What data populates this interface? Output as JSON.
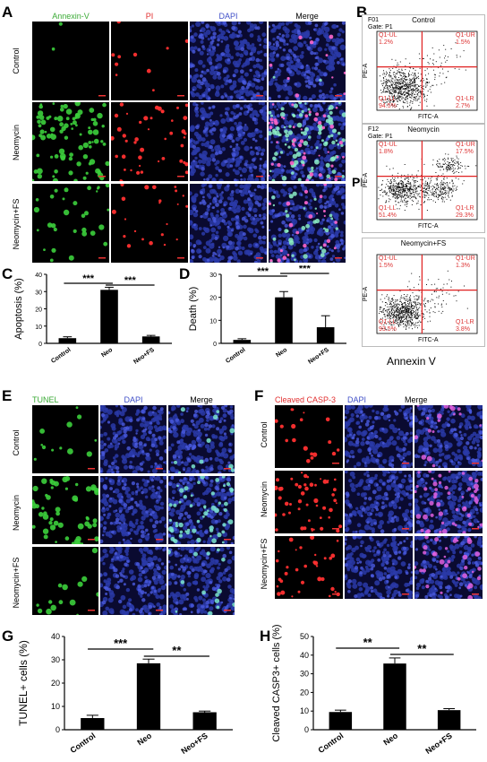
{
  "figure": {
    "panels": {
      "A": {
        "label": "A",
        "channels": [
          "Annexin-V",
          "PI",
          "DAPI",
          "Merge"
        ],
        "channel_colors": [
          "#3aaa35",
          "#e23030",
          "#4050c8",
          "#000000"
        ],
        "rows": [
          "Control",
          "Neomycin",
          "Neomycin+FS"
        ]
      },
      "B": {
        "label": "B",
        "y_title": "PI",
        "x_title": "Annexin V",
        "axis_x": "FITC-A",
        "axis_y": "PE-A",
        "plots": [
          {
            "id": "F01",
            "gate": "Gate: P1",
            "title": "Control",
            "UL": "Q1-UL\n1.2%",
            "UR": "Q1-UR\n1.5%",
            "LL": "Q1-LL\n94.5%",
            "LR": "Q1-LR\n2.7%"
          },
          {
            "id": "F12",
            "gate": "Gate: P1",
            "title": "Neomycin",
            "UL": "Q1-UL\n1.8%",
            "UR": "Q1-UR\n17.5%",
            "LL": "Q1-LL\n51.4%",
            "LR": "Q1-LR\n29.3%"
          },
          {
            "id": "",
            "gate": "",
            "title": "Neomycin+FS",
            "UL": "Q1-UL\n1.5%",
            "UR": "Q1-UR\n1.3%",
            "LL": "Q1-LL\n93.5%",
            "LR": "Q1-LR\n3.8%"
          }
        ]
      },
      "E": {
        "label": "E",
        "channels": [
          "TUNEL",
          "DAPI",
          "Merge"
        ],
        "channel_colors": [
          "#3aaa35",
          "#4050c8",
          "#000000"
        ],
        "rows": [
          "Control",
          "Neomycin",
          "Neomycin+FS"
        ]
      },
      "F": {
        "label": "F",
        "channels": [
          "Cleaved CASP-3",
          "DAPI",
          "Merge"
        ],
        "channel_colors": [
          "#e23030",
          "#4050c8",
          "#000000"
        ],
        "rows": [
          "Control",
          "Neomycin",
          "Neomycin+FS"
        ]
      }
    }
  },
  "chart_data": [
    {
      "panel": "C",
      "type": "bar",
      "categories": [
        "Control",
        "Neo",
        "Neo+FS"
      ],
      "values": [
        3,
        31,
        4
      ],
      "errors": [
        0.8,
        1.5,
        0.6
      ],
      "ylabel": "Apoptosis (%)",
      "ylim": [
        0,
        40
      ],
      "yticks": [
        0,
        10,
        20,
        30,
        40
      ],
      "significance": [
        {
          "from": 0,
          "to": 1,
          "text": "***"
        },
        {
          "from": 1,
          "to": 2,
          "text": "***"
        }
      ]
    },
    {
      "panel": "D",
      "type": "bar",
      "categories": [
        "Control",
        "Neo",
        "Neo+FS"
      ],
      "values": [
        1.5,
        20,
        7
      ],
      "errors": [
        0.5,
        2.5,
        5
      ],
      "ylabel": "Death (%)",
      "ylim": [
        0,
        30
      ],
      "yticks": [
        0,
        10,
        20,
        30
      ],
      "significance": [
        {
          "from": 0,
          "to": 1,
          "text": "***"
        },
        {
          "from": 1,
          "to": 2,
          "text": "***"
        }
      ]
    },
    {
      "panel": "G",
      "type": "bar",
      "categories": [
        "Control",
        "Neo",
        "Neo+FS"
      ],
      "values": [
        5,
        28.5,
        7.5
      ],
      "errors": [
        1.2,
        1.8,
        0.5
      ],
      "ylabel": "TUNEL+ cells (%)",
      "ylim": [
        0,
        40
      ],
      "yticks": [
        0,
        10,
        20,
        30,
        40
      ],
      "significance": [
        {
          "from": 0,
          "to": 1,
          "text": "***"
        },
        {
          "from": 1,
          "to": 2,
          "text": "**"
        }
      ]
    },
    {
      "panel": "H",
      "type": "bar",
      "categories": [
        "Control",
        "Neo",
        "Neo+FS"
      ],
      "values": [
        9.5,
        35.5,
        10.5
      ],
      "errors": [
        1,
        3,
        0.8
      ],
      "ylabel": "Cleaved CASP3+ cells (%)",
      "ylim": [
        0,
        50
      ],
      "yticks": [
        0,
        10,
        20,
        30,
        40,
        50
      ],
      "significance": [
        {
          "from": 0,
          "to": 1,
          "text": "**"
        },
        {
          "from": 1,
          "to": 2,
          "text": "**"
        }
      ]
    }
  ]
}
